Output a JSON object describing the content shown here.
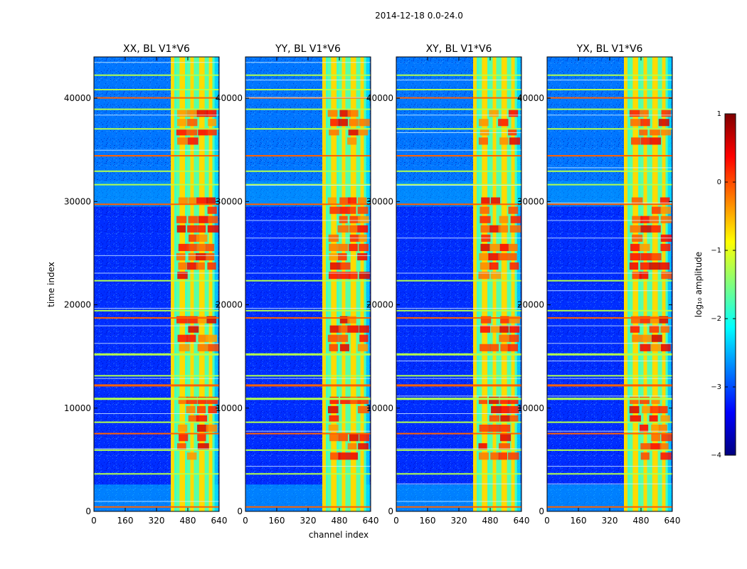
{
  "figure": {
    "suptitle": "2014-12-18 0.0-24.0",
    "xlabel": "channel index",
    "ylabel": "time index"
  },
  "chart_data": [
    {
      "type": "heatmap",
      "title": "XX, BL V1*V6",
      "x_range": [
        0,
        640
      ],
      "y_range": [
        0,
        44000
      ],
      "x_ticks": [
        "0",
        "160",
        "320",
        "480",
        "640"
      ],
      "x_tick_values": [
        0,
        160,
        320,
        480,
        640
      ],
      "y_ticks": [
        "0",
        "10000",
        "20000",
        "30000",
        "40000"
      ],
      "y_tick_values": [
        0,
        10000,
        20000,
        30000,
        40000
      ],
      "rfi_band_channels": [
        400,
        600
      ],
      "bright_columns": [
        400,
        445,
        455,
        500,
        545,
        555,
        595
      ],
      "horizontal_flag_rows": [
        500,
        3700,
        6000,
        7600,
        8700,
        11000,
        12300,
        13200,
        15300,
        18800,
        19500,
        22400,
        29800,
        31700,
        33000,
        34500,
        37100,
        39000,
        40100,
        40900,
        42300
      ]
    },
    {
      "type": "heatmap",
      "title": "YY, BL V1*V6",
      "x_range": [
        0,
        640
      ],
      "y_range": [
        0,
        44000
      ],
      "x_ticks": [
        "0",
        "160",
        "320",
        "480",
        "640"
      ],
      "x_tick_values": [
        0,
        160,
        320,
        480,
        640
      ],
      "y_ticks": [
        "0",
        "10000",
        "20000",
        "30000",
        "40000"
      ],
      "y_tick_values": [
        0,
        10000,
        20000,
        30000,
        40000
      ],
      "rfi_band_channels": [
        400,
        600
      ],
      "bright_columns": [
        400,
        445,
        455,
        500,
        545,
        555,
        595
      ],
      "horizontal_flag_rows": [
        500,
        3700,
        6000,
        7600,
        8700,
        11000,
        12300,
        13200,
        15300,
        18800,
        19500,
        22400,
        29800,
        31700,
        33000,
        34500,
        37100,
        39000,
        40100,
        40900,
        42300
      ]
    },
    {
      "type": "heatmap",
      "title": "XY, BL V1*V6",
      "x_range": [
        0,
        640
      ],
      "y_range": [
        0,
        44000
      ],
      "x_ticks": [
        "0",
        "160",
        "320",
        "480",
        "640"
      ],
      "x_tick_values": [
        0,
        160,
        320,
        480,
        640
      ],
      "y_ticks": [
        "0",
        "10000",
        "20000",
        "30000",
        "40000"
      ],
      "y_tick_values": [
        0,
        10000,
        20000,
        30000,
        40000
      ],
      "rfi_band_channels": [
        400,
        600
      ],
      "bright_columns": [
        400,
        445,
        455,
        500,
        545,
        555,
        595
      ],
      "horizontal_flag_rows": [
        500,
        3700,
        6000,
        7600,
        8700,
        11000,
        12300,
        13200,
        15300,
        18800,
        19500,
        22400,
        29800,
        31700,
        33000,
        34500,
        37100,
        39000,
        40100,
        40900,
        42300
      ]
    },
    {
      "type": "heatmap",
      "title": "YX, BL V1*V6",
      "x_range": [
        0,
        640
      ],
      "y_range": [
        0,
        44000
      ],
      "x_ticks": [
        "0",
        "160",
        "320",
        "480",
        "640"
      ],
      "x_tick_values": [
        0,
        160,
        320,
        480,
        640
      ],
      "y_ticks": [
        "0",
        "10000",
        "20000",
        "30000",
        "40000"
      ],
      "y_tick_values": [
        0,
        10000,
        20000,
        30000,
        40000
      ],
      "rfi_band_channels": [
        400,
        600
      ],
      "bright_columns": [
        400,
        445,
        455,
        500,
        545,
        555,
        595
      ],
      "horizontal_flag_rows": [
        500,
        3700,
        6000,
        7600,
        8700,
        11000,
        12300,
        13200,
        15300,
        18800,
        19500,
        22400,
        29800,
        31700,
        33000,
        34500,
        37100,
        39000,
        40100,
        40900,
        42300
      ]
    }
  ],
  "colorbar": {
    "label": "log₁₀ amplitude",
    "range": [
      -4,
      1
    ],
    "ticks": [
      "1",
      "0",
      "−1",
      "−2",
      "−3",
      "−4"
    ],
    "tick_values": [
      1,
      0,
      -1,
      -2,
      -3,
      -4
    ],
    "colormap": "jet",
    "colors": [
      "#00007f",
      "#0000ff",
      "#007fff",
      "#00ffff",
      "#7fff7f",
      "#ffff00",
      "#ff7f00",
      "#ff0000",
      "#7f0000"
    ]
  }
}
